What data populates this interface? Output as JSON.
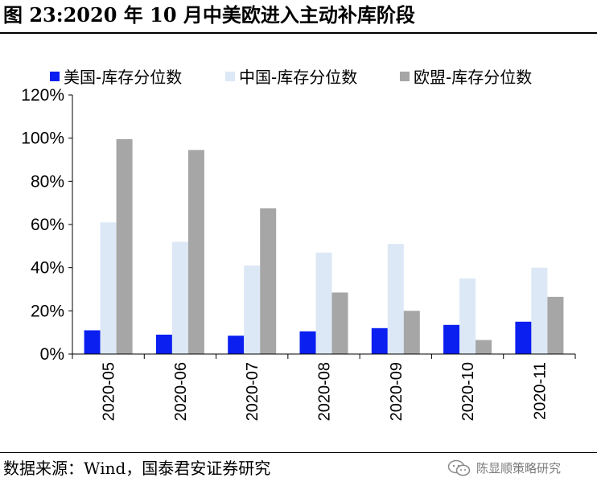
{
  "title": "图 23:2020 年 10 月中美欧进入主动补库阶段",
  "source": "数据来源：Wind，国泰君安证券研究",
  "watermark": {
    "text": "陈显顺策略研究",
    "icon": "wechat-icon"
  },
  "chart_data": {
    "type": "bar",
    "categories": [
      "2020-05",
      "2020-06",
      "2020-07",
      "2020-08",
      "2020-09",
      "2020-10",
      "2020-11"
    ],
    "series": [
      {
        "name": "美国-库存分位数",
        "color": "#0a1ff0",
        "values": [
          11,
          9,
          8.5,
          10.5,
          12,
          13.5,
          15
        ]
      },
      {
        "name": "中国-库存分位数",
        "color": "#dce8f6",
        "values": [
          61,
          52,
          41,
          47,
          51,
          35,
          40
        ]
      },
      {
        "name": "欧盟-库存分位数",
        "color": "#a6a6a6",
        "values": [
          99.5,
          94.5,
          67.5,
          28.5,
          20,
          6.5,
          26.5
        ]
      }
    ],
    "yticks": [
      "0%",
      "20%",
      "40%",
      "60%",
      "80%",
      "100%",
      "120%"
    ],
    "ylim": [
      0,
      120
    ],
    "legend_position": "top",
    "grid": false
  }
}
